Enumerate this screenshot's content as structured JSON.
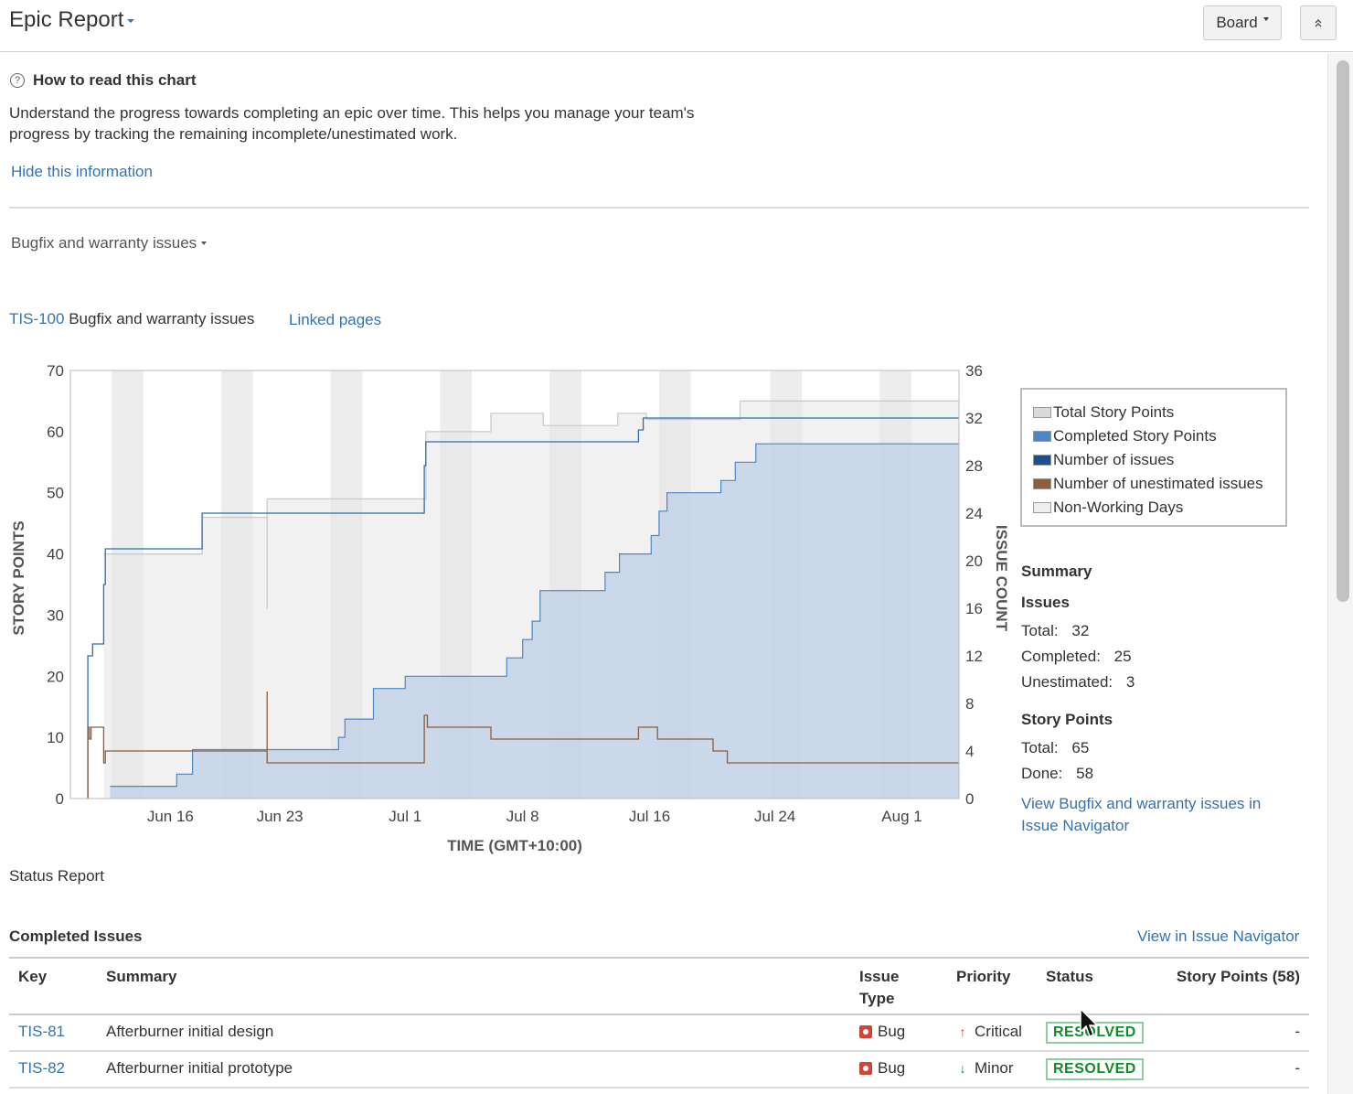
{
  "header": {
    "title": "Epic Report",
    "board_label": "Board"
  },
  "info": {
    "title": "How to read this chart",
    "text": "Understand the progress towards completing an epic over time. This helps you manage your team's progress by tracking the remaining incomplete/unestimated work.",
    "hide_link": "Hide this information"
  },
  "epic_select": {
    "label": "Bugfix and warranty issues"
  },
  "epic": {
    "key": "TIS-100",
    "name": "Bugfix and warranty issues",
    "linked_pages": "Linked pages"
  },
  "legend": [
    {
      "label": "Total Story Points",
      "color": "#d9d9d9"
    },
    {
      "label": "Completed Story Points",
      "color": "#4a86c8"
    },
    {
      "label": "Number of issues",
      "color": "#1f4e8c"
    },
    {
      "label": "Number of unestimated issues",
      "color": "#8b5e3c"
    },
    {
      "label": "Non-Working Days",
      "color": "#eeeeee"
    }
  ],
  "summary": {
    "title": "Summary",
    "issues_heading": "Issues",
    "issues_total_label": "Total:",
    "issues_total": "32",
    "issues_completed_label": "Completed:",
    "issues_completed": "25",
    "issues_unestimated_label": "Unestimated:",
    "issues_unestimated": "3",
    "points_heading": "Story Points",
    "points_total_label": "Total:",
    "points_total": "65",
    "points_done_label": "Done:",
    "points_done": "58",
    "view_link": "View Bugfix and warranty issues in Issue Navigator"
  },
  "status_report": "Status Report",
  "completed": {
    "title": "Completed Issues",
    "view_link": "View in Issue Navigator",
    "headers": {
      "key": "Key",
      "summary": "Summary",
      "type": "Issue Type",
      "priority": "Priority",
      "status": "Status",
      "points": "Story Points (58)"
    },
    "rows": [
      {
        "key": "TIS-81",
        "summary": "Afterburner initial design",
        "type": "Bug",
        "priority": "Critical",
        "priority_icon": "arrow-up-icon",
        "status": "RESOLVED",
        "points": "-"
      },
      {
        "key": "TIS-82",
        "summary": "Afterburner initial prototype",
        "type": "Bug",
        "priority": "Minor",
        "priority_icon": "arrow-down-icon",
        "status": "RESOLVED",
        "points": "-"
      }
    ]
  },
  "chart_data": {
    "type": "area",
    "title": "",
    "xlabel": "TIME (GMT+10:00)",
    "ylabel": "STORY POINTS",
    "y2label": "ISSUE COUNT",
    "x_ticks": [
      "Jun 16",
      "Jun 23",
      "Jul 1",
      "Jul 8",
      "Jul 16",
      "Jul 24",
      "Aug 1"
    ],
    "ylim": [
      0,
      70
    ],
    "y_ticks": [
      0,
      10,
      20,
      30,
      40,
      50,
      60,
      70
    ],
    "y2lim": [
      0,
      36
    ],
    "y2_ticks": [
      0,
      4,
      8,
      12,
      16,
      20,
      24,
      28,
      32,
      36
    ],
    "xlim": [
      8,
      64
    ],
    "x_tick_positions": [
      14.3,
      21.2,
      29.1,
      36.5,
      44.5,
      52.4,
      60.4
    ],
    "non_working_days": [
      [
        10.6,
        12.6
      ],
      [
        17.5,
        19.5
      ],
      [
        24.4,
        26.4
      ],
      [
        31.3,
        33.3
      ],
      [
        38.2,
        40.2
      ],
      [
        45.1,
        47.1
      ],
      [
        52.1,
        54.1
      ],
      [
        59.0,
        61.0
      ]
    ],
    "series": [
      {
        "name": "Total Story Points",
        "axis": "left",
        "points": [
          [
            10.1,
            40
          ],
          [
            14.3,
            40
          ],
          [
            16.3,
            40
          ],
          [
            16.3,
            46
          ],
          [
            20.4,
            46
          ],
          [
            20.4,
            31
          ],
          [
            20.4,
            49
          ],
          [
            30.4,
            49
          ],
          [
            30.4,
            60
          ],
          [
            34.5,
            60
          ],
          [
            34.5,
            63
          ],
          [
            37.8,
            63
          ],
          [
            37.8,
            61
          ],
          [
            42.5,
            61
          ],
          [
            42.5,
            63
          ],
          [
            44.3,
            63
          ],
          [
            44.3,
            62
          ],
          [
            50.2,
            62
          ],
          [
            50.2,
            65
          ],
          [
            64,
            65
          ]
        ]
      },
      {
        "name": "Completed Story Points",
        "axis": "left",
        "points": [
          [
            10.5,
            2
          ],
          [
            14.7,
            2
          ],
          [
            14.7,
            4
          ],
          [
            15.7,
            4
          ],
          [
            15.7,
            8
          ],
          [
            16.3,
            8
          ],
          [
            20.4,
            8
          ],
          [
            24.9,
            8
          ],
          [
            24.9,
            10
          ],
          [
            25.3,
            10
          ],
          [
            25.3,
            13
          ],
          [
            27.1,
            13
          ],
          [
            27.1,
            18
          ],
          [
            29.1,
            18
          ],
          [
            29.1,
            20
          ],
          [
            33.0,
            20
          ],
          [
            33.0,
            20
          ],
          [
            35.5,
            20
          ],
          [
            35.5,
            23
          ],
          [
            36.5,
            23
          ],
          [
            36.5,
            26
          ],
          [
            37.1,
            26
          ],
          [
            37.1,
            29
          ],
          [
            37.6,
            29
          ],
          [
            37.6,
            34
          ],
          [
            38.4,
            34
          ],
          [
            38.4,
            34
          ],
          [
            41.7,
            34
          ],
          [
            41.7,
            37
          ],
          [
            42.6,
            37
          ],
          [
            42.6,
            40
          ],
          [
            44.6,
            40
          ],
          [
            44.6,
            43
          ],
          [
            45.1,
            43
          ],
          [
            45.1,
            47
          ],
          [
            45.6,
            47
          ],
          [
            45.6,
            50
          ],
          [
            49.0,
            50
          ],
          [
            49.0,
            52
          ],
          [
            49.9,
            52
          ],
          [
            49.9,
            55
          ],
          [
            51.2,
            55
          ],
          [
            51.2,
            58
          ],
          [
            64,
            58
          ]
        ]
      },
      {
        "name": "Number of issues",
        "axis": "right",
        "points": [
          [
            9.1,
            0
          ],
          [
            9.1,
            12
          ],
          [
            9.4,
            12
          ],
          [
            9.4,
            13
          ],
          [
            10.1,
            13
          ],
          [
            10.1,
            18
          ],
          [
            10.2,
            18
          ],
          [
            10.2,
            19
          ],
          [
            10.2,
            21
          ],
          [
            16.3,
            21
          ],
          [
            16.3,
            24
          ],
          [
            30.3,
            24
          ],
          [
            30.3,
            28
          ],
          [
            30.4,
            28
          ],
          [
            30.4,
            30
          ],
          [
            43.8,
            30
          ],
          [
            43.8,
            31
          ],
          [
            44.1,
            31
          ],
          [
            44.1,
            32
          ],
          [
            64,
            32
          ]
        ]
      },
      {
        "name": "Number of unestimated issues",
        "axis": "right",
        "points": [
          [
            9.1,
            0
          ],
          [
            9.1,
            6
          ],
          [
            9.2,
            6
          ],
          [
            9.2,
            5
          ],
          [
            9.3,
            5
          ],
          [
            9.3,
            6
          ],
          [
            10.1,
            6
          ],
          [
            10.1,
            3
          ],
          [
            10.2,
            3
          ],
          [
            10.2,
            4
          ],
          [
            20.4,
            4
          ],
          [
            20.4,
            9
          ],
          [
            20.4,
            3
          ],
          [
            30.3,
            3
          ],
          [
            30.3,
            7
          ],
          [
            30.5,
            7
          ],
          [
            30.5,
            6
          ],
          [
            34.5,
            6
          ],
          [
            34.5,
            5
          ],
          [
            43.8,
            5
          ],
          [
            43.8,
            6
          ],
          [
            45.0,
            6
          ],
          [
            45.0,
            5
          ],
          [
            48.5,
            5
          ],
          [
            48.5,
            4
          ],
          [
            49.4,
            4
          ],
          [
            49.4,
            3
          ],
          [
            64,
            3
          ]
        ]
      }
    ]
  }
}
